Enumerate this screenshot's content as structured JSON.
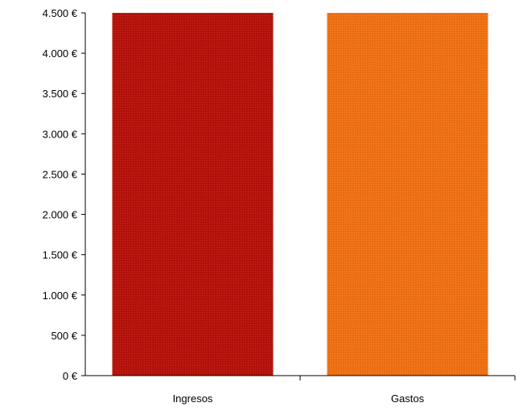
{
  "chart_data": {
    "type": "bar",
    "title": "",
    "xlabel": "",
    "ylabel": "",
    "categories": [
      "Ingresos",
      "Gastos"
    ],
    "values": [
      4500,
      4500
    ],
    "ylim": [
      0,
      4500
    ],
    "yticks": [
      0,
      500,
      1000,
      1500,
      2000,
      2500,
      3000,
      3500,
      4000,
      4500
    ],
    "ytick_labels": [
      "0 €",
      "500 €",
      "1.000 €",
      "1.500 €",
      "2.000 €",
      "2.500 €",
      "3.000 €",
      "3.500 €",
      "4.000 €",
      "4.500 €"
    ],
    "bar_colors": [
      "#b8120a",
      "#f27214"
    ],
    "grid": false,
    "legend": "none"
  }
}
